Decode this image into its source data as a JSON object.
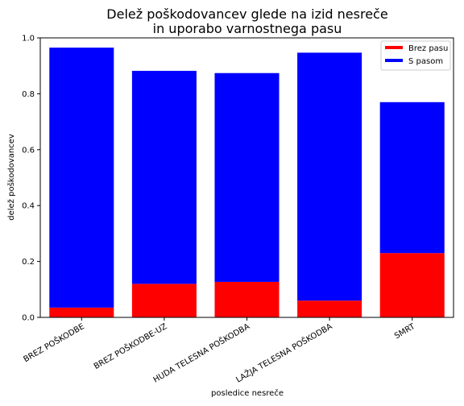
{
  "chart_data": {
    "type": "bar",
    "stacked": true,
    "title_line1": "Delež poškodovancev glede na izid nesreče",
    "title_line2": "in uporabo varnostnega pasu",
    "xlabel": "posledice nesreče",
    "ylabel": "delež poškodovancev",
    "ylim": [
      0,
      1.0
    ],
    "yticks": [
      "0.0",
      "0.2",
      "0.4",
      "0.6",
      "0.8",
      "1.0"
    ],
    "categories": [
      "BREZ POŠKODBE",
      "BREZ POŠKODBE-UZ",
      "HUDA TELESNA POŠKODBA",
      "LAŽJA TELESNA POŠKODBA",
      "SMRT"
    ],
    "series": [
      {
        "name": "Brez pasu",
        "color": "#ff0000",
        "values": [
          0.035,
          0.12,
          0.127,
          0.06,
          0.23
        ]
      },
      {
        "name": "S pasom",
        "color": "#0000ff",
        "values": [
          0.93,
          0.762,
          0.747,
          0.887,
          0.54
        ]
      }
    ],
    "legend_position": "top-right",
    "grid": false
  }
}
